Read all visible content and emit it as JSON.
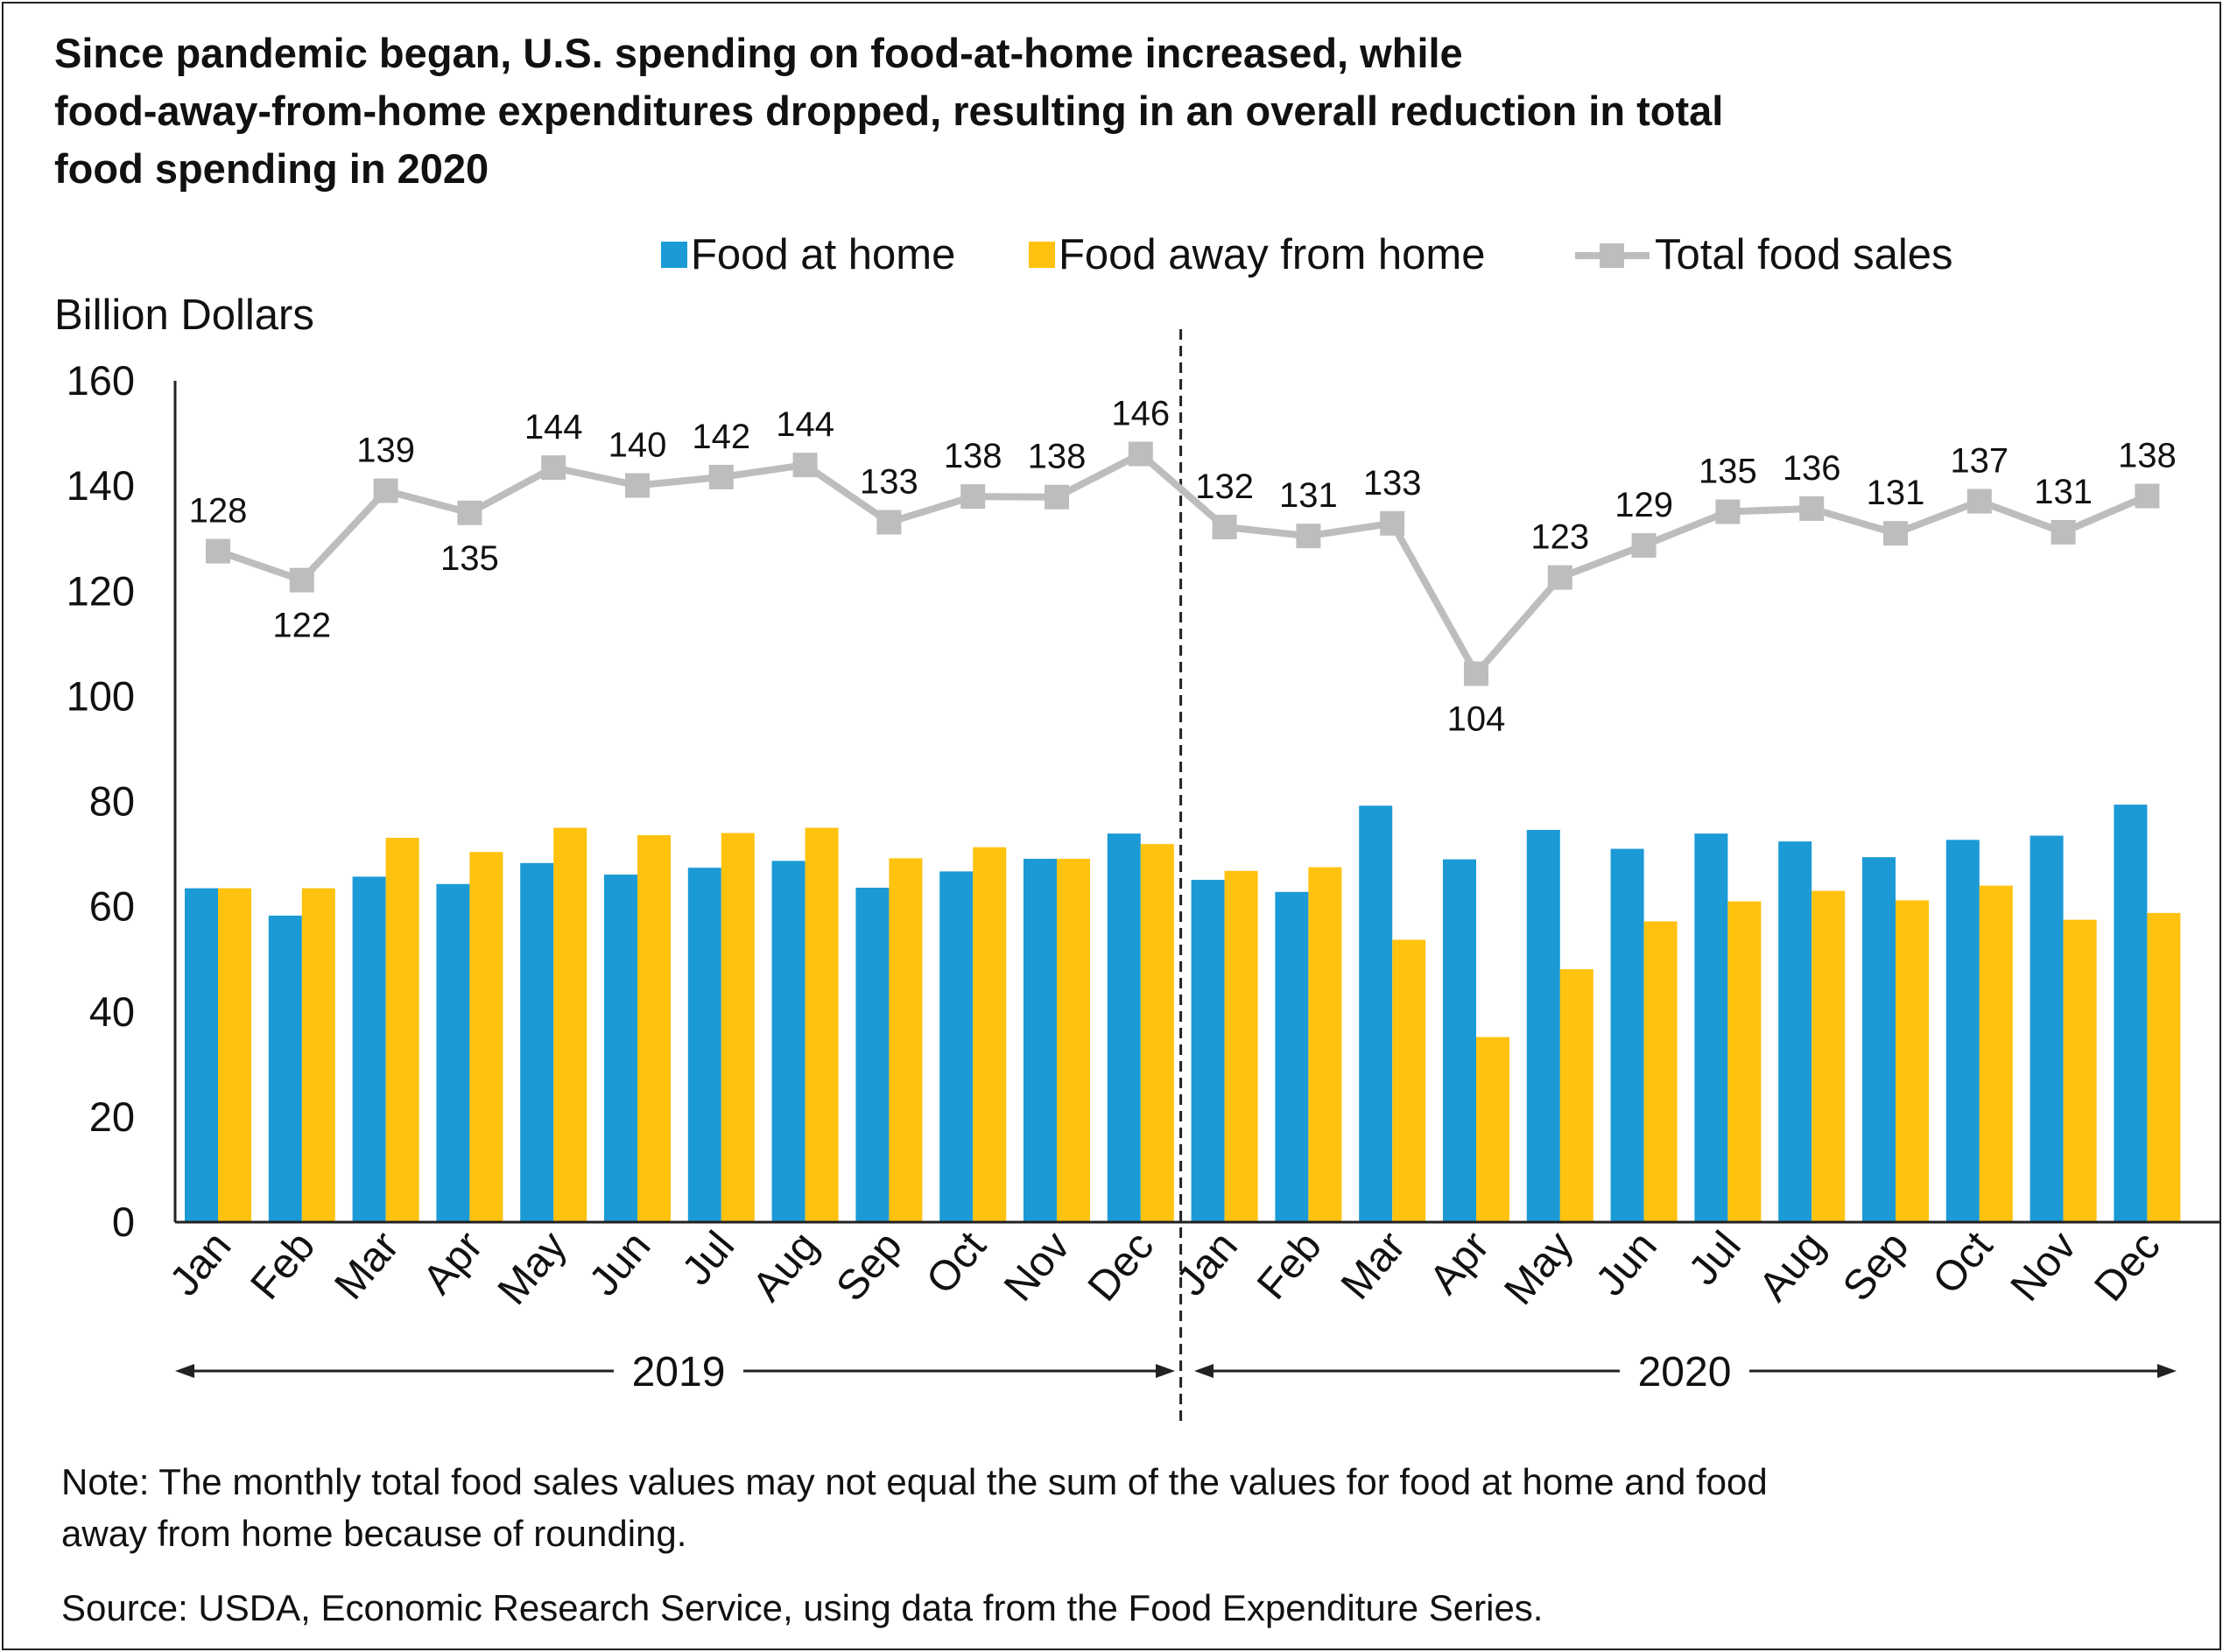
{
  "chart_data": {
    "type": "bar",
    "title": "Since pandemic began, U.S. spending on food-at-home increased, while food-away-from-home expenditures dropped, resulting in an overall reduction in total food spending in 2020",
    "title_lines": [
      "Since pandemic began, U.S. spending on food-at-home increased, while",
      "food-away-from-home expenditures dropped, resulting in an overall reduction in total",
      "food spending in 2020"
    ],
    "ylabel": "Billion Dollars",
    "xlabel": "",
    "ylim": [
      0,
      160
    ],
    "y_ticks": [
      0,
      20,
      40,
      60,
      80,
      100,
      120,
      140,
      160
    ],
    "grid": false,
    "legend_position": "top-right",
    "categories": [
      "Jan",
      "Feb",
      "Mar",
      "Apr",
      "May",
      "Jun",
      "Jul",
      "Aug",
      "Sep",
      "Oct",
      "Nov",
      "Dec",
      "Jan",
      "Feb",
      "Mar",
      "Apr",
      "May",
      "Jun",
      "Jul",
      "Aug",
      "Sep",
      "Oct",
      "Nov",
      "Dec"
    ],
    "year_groups": [
      {
        "label": "2019",
        "start_index": 0,
        "end_index": 11
      },
      {
        "label": "2020",
        "start_index": 12,
        "end_index": 23
      }
    ],
    "series": [
      {
        "name": "Food at home",
        "type": "bar",
        "color": "#1b9ad6",
        "values": [
          63.5,
          58.3,
          65.7,
          64.3,
          68.3,
          66.1,
          67.4,
          68.7,
          63.6,
          66.7,
          69.1,
          73.9,
          65.1,
          62.8,
          79.2,
          69.0,
          74.6,
          71.0,
          73.9,
          72.4,
          69.4,
          72.7,
          73.5,
          79.4
        ]
      },
      {
        "name": "Food away from home",
        "type": "bar",
        "color": "#ffc20e",
        "values": [
          63.5,
          63.5,
          73.1,
          70.4,
          75.0,
          73.6,
          74.0,
          75.0,
          69.2,
          71.3,
          69.1,
          71.9,
          66.8,
          67.5,
          53.7,
          35.2,
          48.1,
          57.2,
          61.0,
          63.0,
          61.2,
          64.0,
          57.5,
          58.8
        ]
      },
      {
        "name": "Total food sales",
        "type": "line",
        "color": "#bdbdbd",
        "values": [
          127.6,
          122.1,
          139.1,
          134.9,
          143.5,
          140.1,
          141.7,
          144.0,
          133.1,
          138.0,
          137.9,
          146.1,
          132.2,
          130.5,
          132.9,
          104.3,
          122.6,
          128.7,
          135.1,
          135.7,
          131.0,
          137.1,
          131.2,
          138.1
        ],
        "labels": [
          "128",
          "122",
          "139",
          "135",
          "144",
          "140",
          "142",
          "144",
          "133",
          "138",
          "138",
          "146",
          "132",
          "131",
          "133",
          "104",
          "123",
          "129",
          "135",
          "136",
          "131",
          "137",
          "131",
          "138"
        ]
      }
    ],
    "note_lines": [
      "Note: The monthly total food sales values may not equal the sum of the values for food at home and food",
      "away from home because of rounding."
    ],
    "source": "Source: USDA, Economic Research Service, using data from the Food Expenditure Series."
  }
}
